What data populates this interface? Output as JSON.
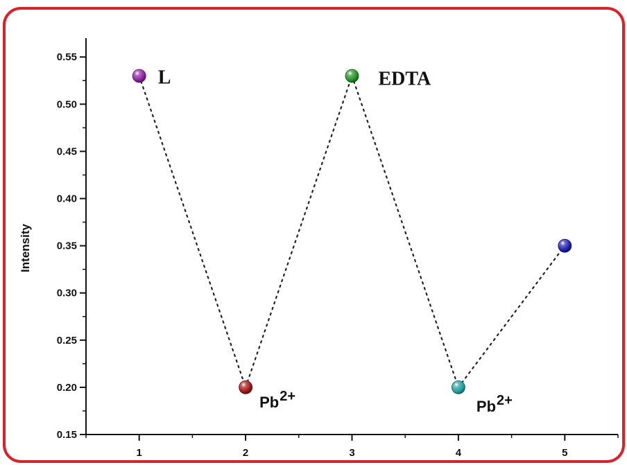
{
  "chart_data": {
    "type": "scatter",
    "title": "",
    "xlabel": "",
    "ylabel": "Intensity",
    "xlim": [
      0.5,
      5.5
    ],
    "ylim": [
      0.15,
      0.57
    ],
    "x_ticks": [
      1,
      2,
      3,
      4,
      5
    ],
    "x_tick_labels": [
      "1",
      "2",
      "3",
      "4",
      "5"
    ],
    "y_ticks": [
      0.15,
      0.2,
      0.25,
      0.3,
      0.35,
      0.4,
      0.45,
      0.5,
      0.55
    ],
    "y_tick_labels": [
      "0.15",
      "0.20",
      "0.25",
      "0.30",
      "0.35",
      "0.40",
      "0.45",
      "0.50",
      "0.55"
    ],
    "grid": false,
    "legend": "none",
    "connector_style": "dotted",
    "points": [
      {
        "x": 1,
        "y": 0.53,
        "label": "L",
        "label_font": "serif",
        "color": "#8b1a9e"
      },
      {
        "x": 2,
        "y": 0.2,
        "label": "Pb",
        "superscript": "2+",
        "label_font": "sans",
        "color": "#9e1010"
      },
      {
        "x": 3,
        "y": 0.53,
        "label": "EDTA",
        "label_font": "serif",
        "color": "#1e8c1e"
      },
      {
        "x": 4,
        "y": 0.2,
        "label": "Pb",
        "superscript": "2+",
        "label_font": "sans",
        "color": "#1a9a9a"
      },
      {
        "x": 5,
        "y": 0.35,
        "label": "",
        "label_font": "sans",
        "color": "#1a1aaa"
      }
    ],
    "frame_color": "#d9222a"
  }
}
